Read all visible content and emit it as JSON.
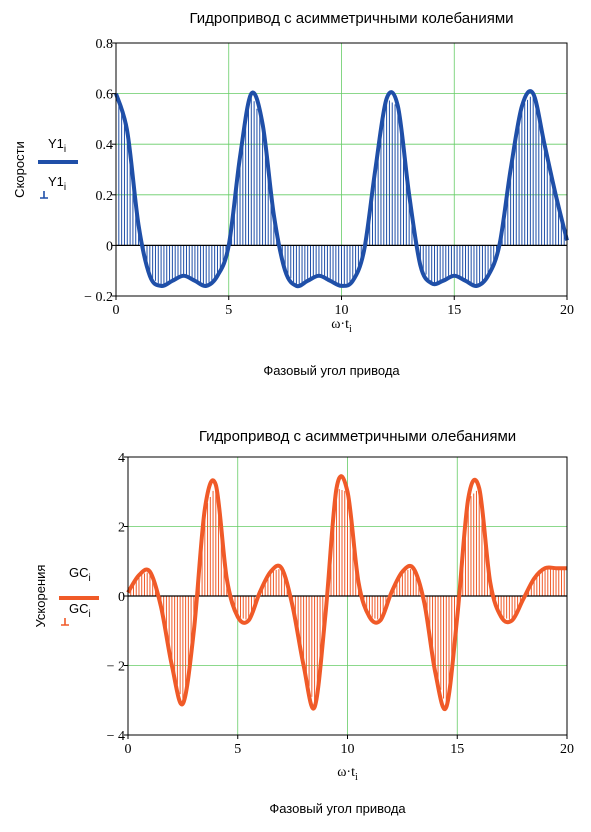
{
  "charts": [
    {
      "title": "Гидропривод с асимметричными колебаниями",
      "ylabel": "Скорости",
      "xvar": "ω·t",
      "xvar_sub": "i",
      "xcaption": "Фазовый угол привода",
      "legend": [
        {
          "name": "Y1",
          "sub": "i",
          "style": "line"
        },
        {
          "name": "Y1",
          "sub": "i",
          "style": "stem"
        }
      ]
    },
    {
      "title": "Гидропривод с асимметричными олебаниями",
      "ylabel": "Ускорения",
      "xvar": "ω·t",
      "xvar_sub": "i",
      "xcaption": "Фазовый угол привода",
      "legend": [
        {
          "name": "GC",
          "sub": "i",
          "style": "line"
        },
        {
          "name": "GC",
          "sub": "i",
          "style": "stem"
        }
      ]
    }
  ],
  "chart_data": [
    {
      "type": "line",
      "title": "Гидропривод с асимметричными колебаниями",
      "xlabel": "ω·t",
      "ylabel": "Скорости",
      "xlim": [
        0,
        20
      ],
      "ylim": [
        -0.2,
        0.8
      ],
      "xticks": [
        0,
        5,
        10,
        15,
        20
      ],
      "yticks": [
        -0.2,
        0,
        0.2,
        0.4,
        0.6,
        0.8
      ],
      "ytick_labels": [
        "− 0.2",
        "0",
        "0.2",
        "0.4",
        "0.6",
        "0.8"
      ],
      "grid": true,
      "color": "#1f4fa8",
      "legend_position": "left",
      "series": [
        {
          "name": "Y1",
          "x": [
            0,
            0.5,
            1,
            1.5,
            2,
            2.5,
            3,
            3.5,
            4,
            4.5,
            5,
            5.5,
            6,
            6.5,
            7,
            7.5,
            8,
            8.5,
            9,
            9.5,
            10,
            10.5,
            11,
            11.5,
            12,
            12.5,
            13,
            13.5,
            14,
            14.5,
            15,
            15.5,
            16,
            16.5,
            17,
            17.5,
            18,
            18.5,
            19,
            19.5,
            20
          ],
          "values": [
            0.6,
            0.45,
            0.08,
            -0.12,
            -0.16,
            -0.14,
            -0.12,
            -0.14,
            -0.16,
            -0.12,
            0.0,
            0.35,
            0.6,
            0.48,
            0.12,
            -0.1,
            -0.16,
            -0.14,
            -0.12,
            -0.14,
            -0.16,
            -0.14,
            -0.02,
            0.3,
            0.58,
            0.55,
            0.2,
            -0.08,
            -0.15,
            -0.14,
            -0.12,
            -0.14,
            -0.16,
            -0.12,
            0.0,
            0.3,
            0.55,
            0.6,
            0.4,
            0.2,
            0.02
          ]
        }
      ]
    },
    {
      "type": "line",
      "title": "Гидропривод с асимметричными олебаниями",
      "xlabel": "ω·t",
      "ylabel": "Ускорения",
      "xlim": [
        0,
        20
      ],
      "ylim": [
        -4,
        4
      ],
      "xticks": [
        0,
        5,
        10,
        15,
        20
      ],
      "yticks": [
        -4,
        -2,
        0,
        2,
        4
      ],
      "ytick_labels": [
        "− 4",
        "− 2",
        "0",
        "2",
        "4"
      ],
      "grid": true,
      "color": "#f05a28",
      "legend_position": "left",
      "series": [
        {
          "name": "GC",
          "x": [
            0,
            0.5,
            1,
            1.5,
            2,
            2.5,
            3,
            3.5,
            4,
            4.5,
            5,
            5.5,
            6,
            6.5,
            7,
            7.5,
            8,
            8.5,
            9,
            9.5,
            10,
            10.5,
            11,
            11.5,
            12,
            12.5,
            13,
            13.5,
            14,
            14.5,
            15,
            15.5,
            16,
            16.5,
            17,
            17.5,
            18,
            18.5,
            19,
            19.5,
            20
          ],
          "values": [
            0.1,
            0.6,
            0.7,
            -0.3,
            -2.0,
            -3.1,
            -1.0,
            2.5,
            3.2,
            0.5,
            -0.6,
            -0.7,
            0.1,
            0.7,
            0.8,
            -0.3,
            -2.0,
            -3.2,
            -0.5,
            3.1,
            3.0,
            0.4,
            -0.6,
            -0.7,
            0.1,
            0.7,
            0.8,
            -0.2,
            -2.2,
            -3.2,
            -0.6,
            2.8,
            3.1,
            0.4,
            -0.6,
            -0.7,
            -0.1,
            0.5,
            0.8,
            0.8,
            0.8
          ]
        }
      ]
    }
  ]
}
